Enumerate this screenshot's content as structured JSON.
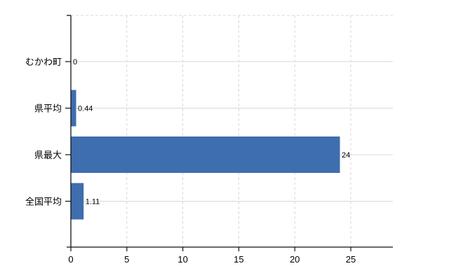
{
  "chart_data": {
    "type": "bar",
    "orientation": "horizontal",
    "title": "",
    "xlabel": "",
    "ylabel": "",
    "categories": [
      "むかわ町",
      "県平均",
      "県最大",
      "全国平均"
    ],
    "values": [
      0,
      0.44,
      24,
      1.11
    ],
    "value_labels": [
      "0",
      "0.44",
      "24",
      "1.11"
    ],
    "x_ticks": [
      0,
      5,
      10,
      15,
      20,
      25
    ],
    "x_tick_labels": [
      "0",
      "5",
      "10",
      "15",
      "20",
      "25"
    ],
    "xlim": [
      0,
      28.8
    ],
    "grid": true,
    "legend": "none",
    "colors": {
      "bar": "#3e6eae",
      "axis": "#111111",
      "h_gridline": "#d4dcd4",
      "v_gridline": "#d9d9d9",
      "top_border": "#d9d9d9",
      "background": "#ffffff",
      "text": "#000000"
    }
  }
}
